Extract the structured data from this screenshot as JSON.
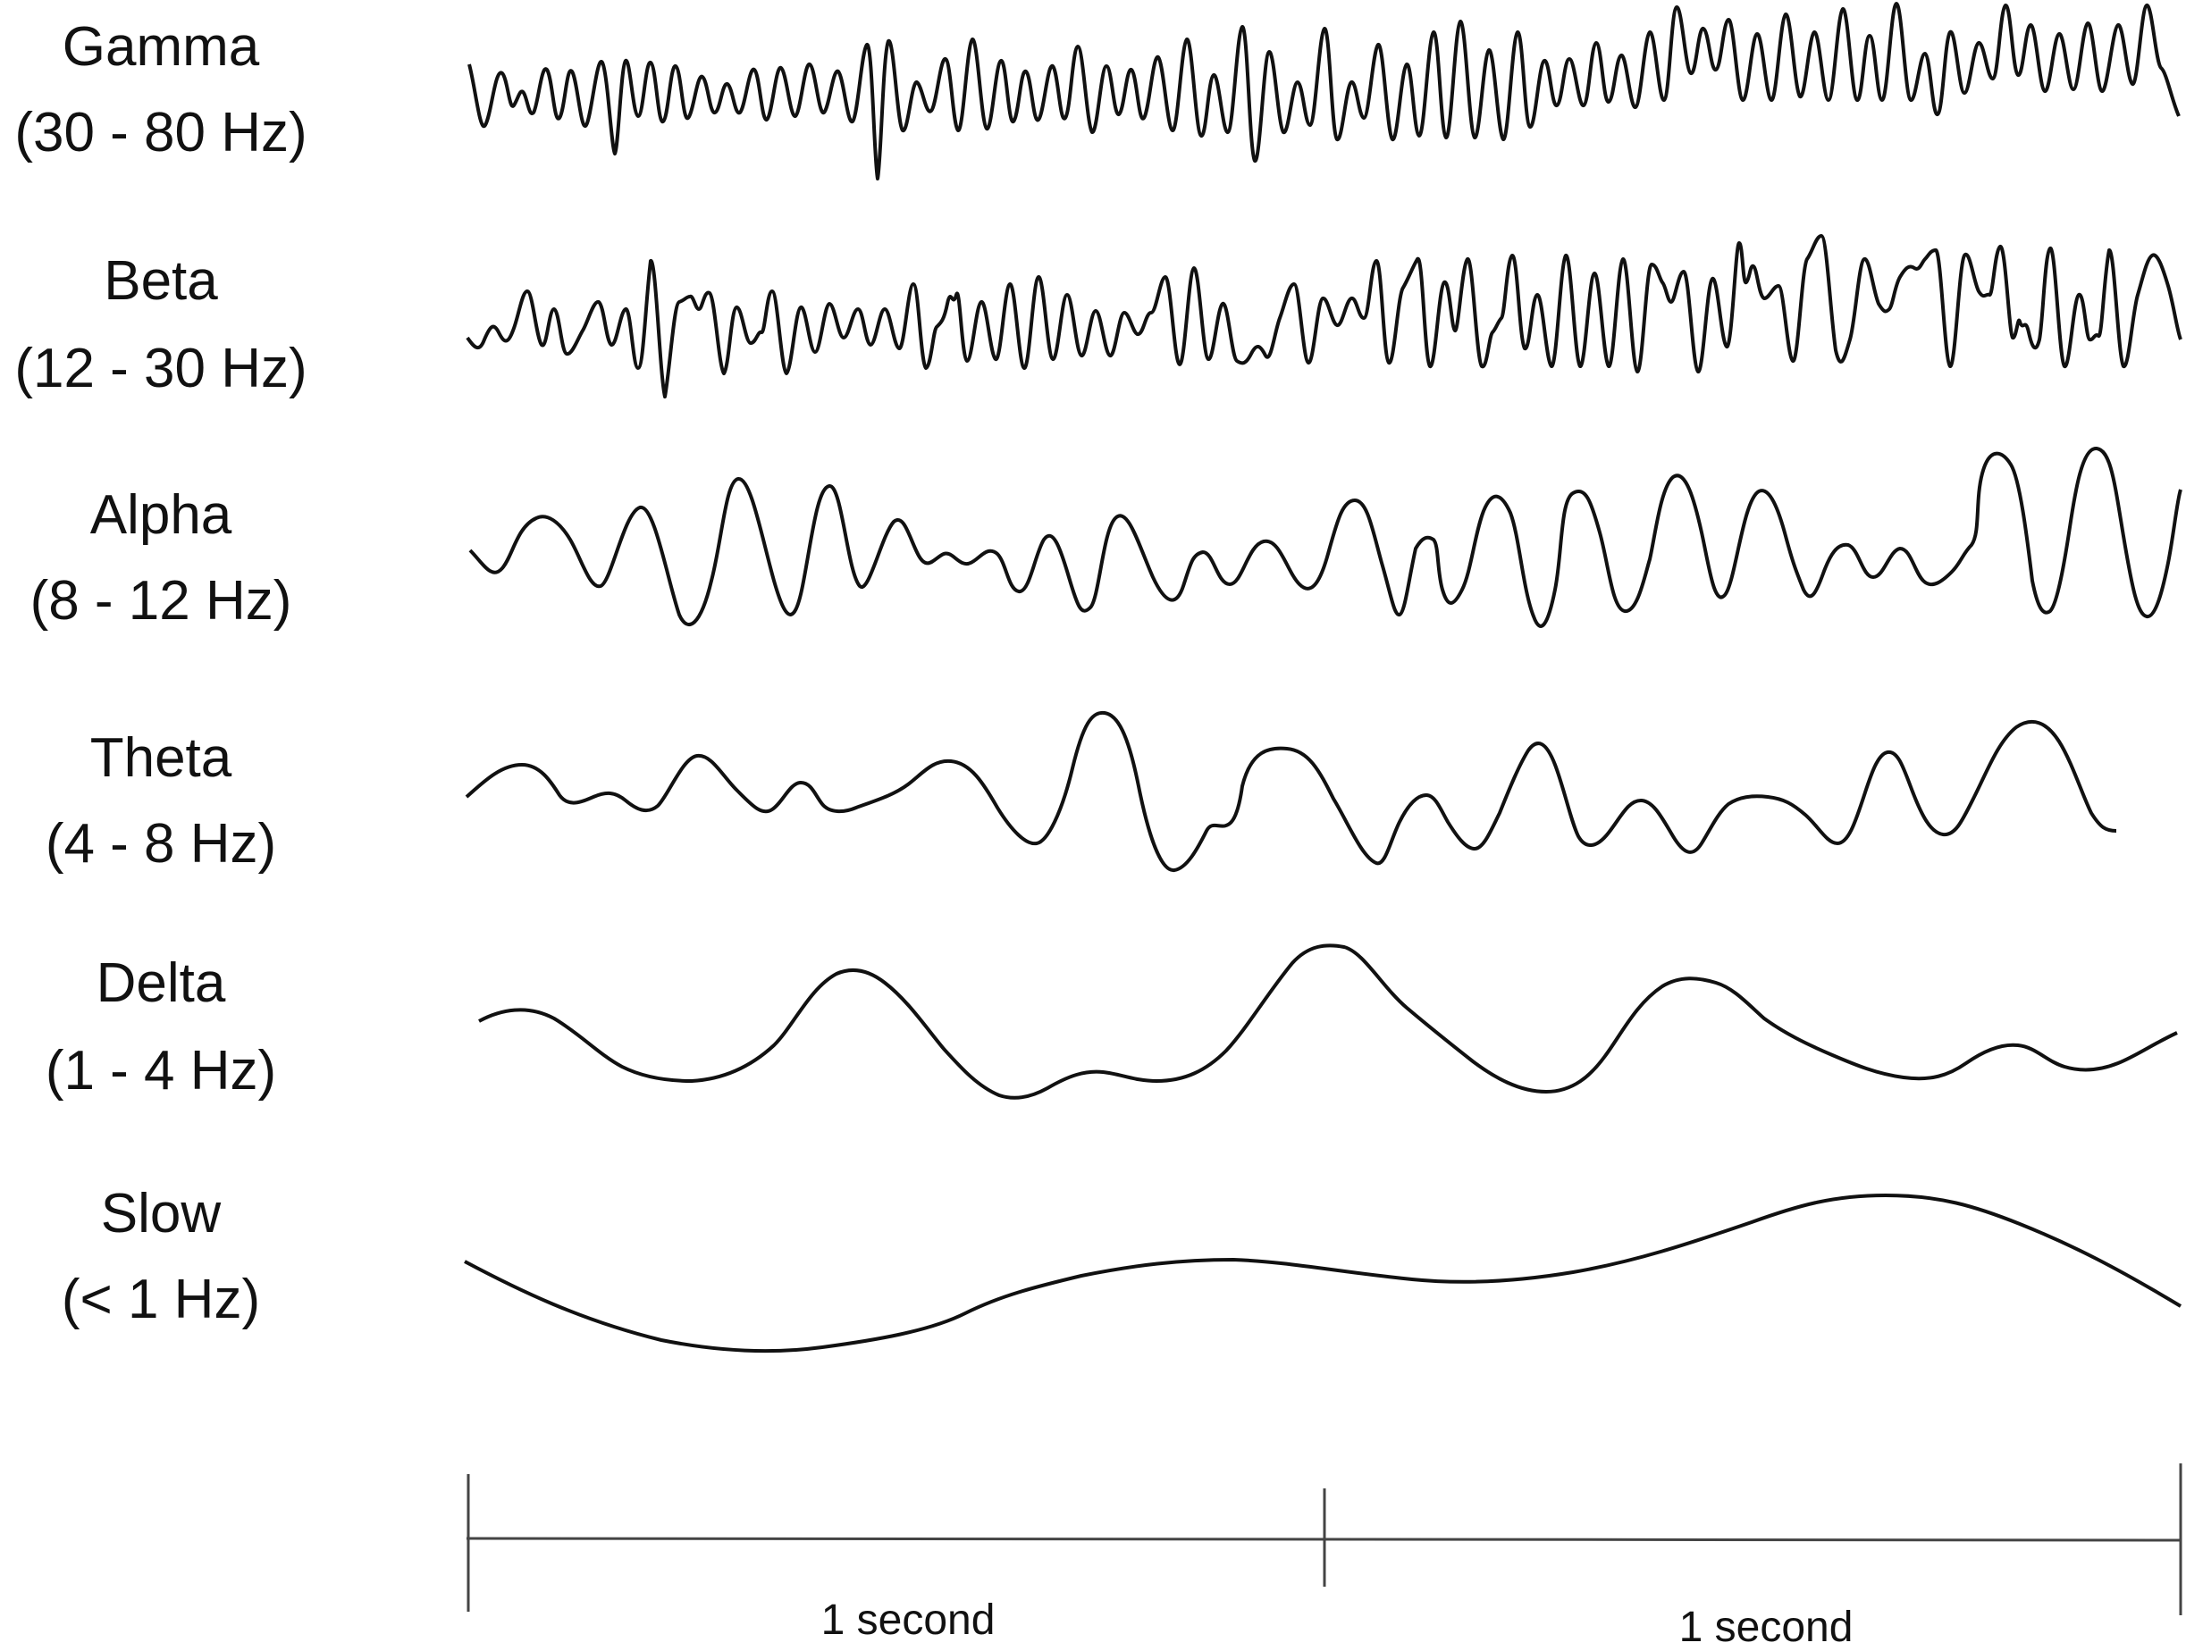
{
  "bands": [
    {
      "id": "gamma",
      "name": "Gamma",
      "range": "(30 - 80 Hz)"
    },
    {
      "id": "beta",
      "name": "Beta",
      "range": "(12 - 30 Hz)"
    },
    {
      "id": "alpha",
      "name": "Alpha",
      "range": "(8 - 12 Hz)"
    },
    {
      "id": "theta",
      "name": "Theta",
      "range": "(4 - 8 Hz)"
    },
    {
      "id": "delta",
      "name": "Delta",
      "range": "(1 - 4 Hz)"
    },
    {
      "id": "slow",
      "name": "Slow",
      "range": "(< 1 Hz)"
    }
  ],
  "time_scale": {
    "segments": [
      {
        "label": "1 second"
      },
      {
        "label": "1 second"
      }
    ]
  },
  "colors": {
    "ink": "#111111",
    "background": "#ffffff"
  }
}
